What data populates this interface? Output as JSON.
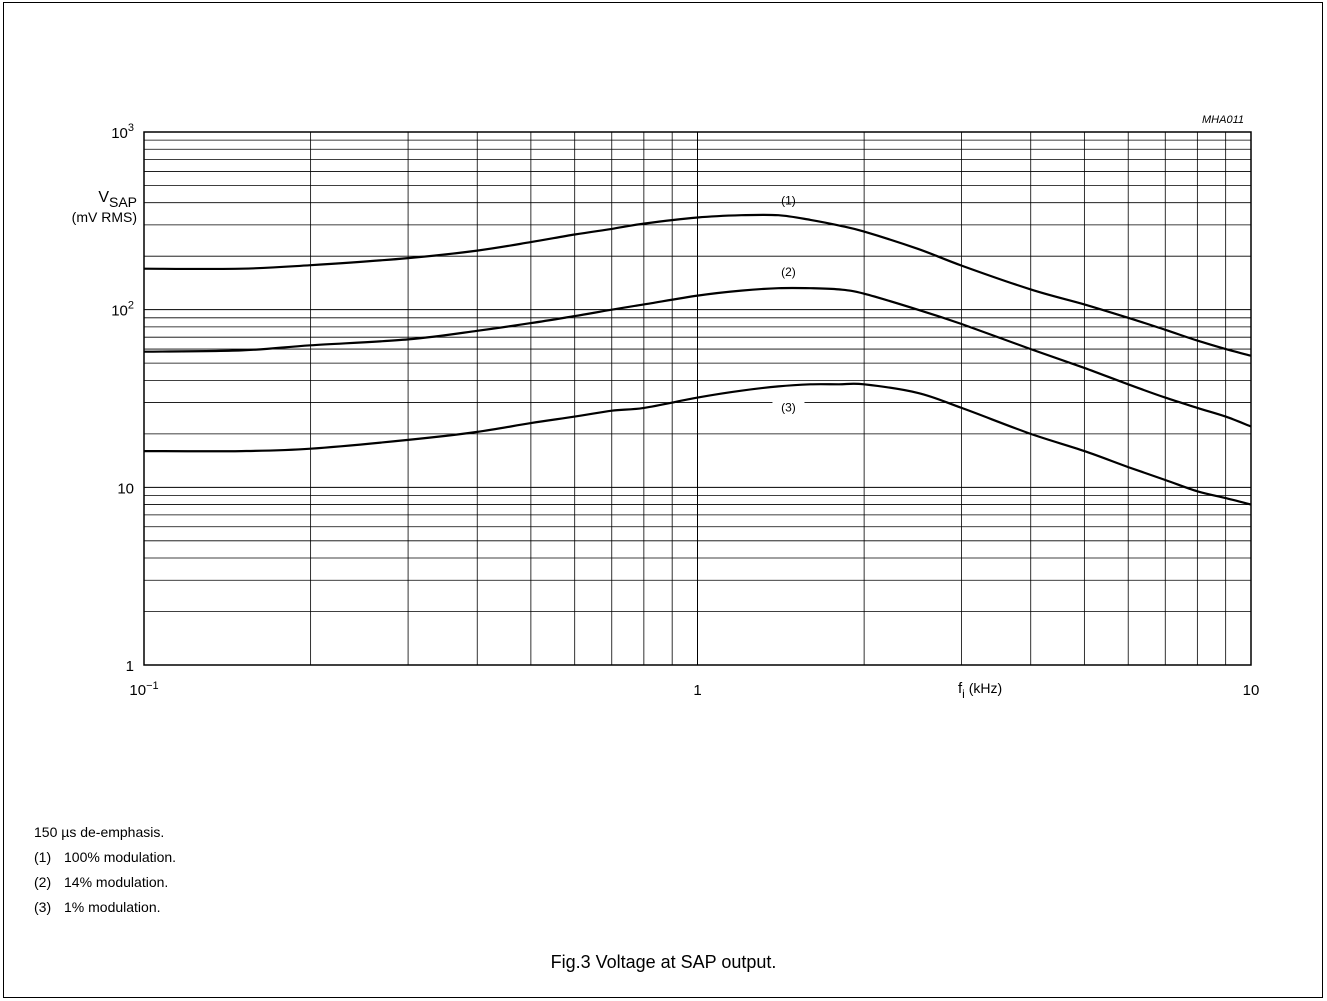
{
  "figure_id": "MHA011",
  "caption": "Fig.3  Voltage at SAP output.",
  "notes": {
    "intro": "150 µs de-emphasis.",
    "items": [
      {
        "marker": "(1)",
        "text": "100% modulation."
      },
      {
        "marker": "(2)",
        "text": "14% modulation."
      },
      {
        "marker": "(3)",
        "text": "1% modulation."
      }
    ]
  },
  "chart_data": {
    "type": "line",
    "title": "",
    "xscale": "log",
    "yscale": "log",
    "xlim": [
      0.1,
      10
    ],
    "ylim": [
      1,
      1000
    ],
    "grid": true,
    "ylabel_main": "V",
    "ylabel_sub": "SAP",
    "ylabel_unit": "(mV RMS)",
    "xlabel_main": "f",
    "xlabel_sub": "i",
    "xlabel_unit": " (kHz)",
    "x_ticks": [
      {
        "value": 0.1,
        "base": "10",
        "exp": "−1"
      },
      {
        "value": 1,
        "base": "1",
        "exp": ""
      },
      {
        "value": 10,
        "base": "10",
        "exp": ""
      }
    ],
    "y_ticks": [
      {
        "value": 1,
        "base": "1",
        "exp": ""
      },
      {
        "value": 10,
        "base": "10",
        "exp": ""
      },
      {
        "value": 100,
        "base": "10",
        "exp": "2"
      },
      {
        "value": 1000,
        "base": "10",
        "exp": "3"
      }
    ],
    "series": [
      {
        "name": "(1)",
        "x": [
          0.1,
          0.15,
          0.2,
          0.3,
          0.4,
          0.5,
          0.6,
          0.7,
          0.8,
          1.0,
          1.2,
          1.4,
          1.6,
          1.8,
          2.0,
          2.5,
          3.0,
          4.0,
          5.0,
          6.0,
          7.0,
          8.0,
          9.0,
          10.0
        ],
        "y": [
          170,
          170,
          178,
          195,
          215,
          240,
          265,
          285,
          305,
          330,
          340,
          340,
          320,
          298,
          275,
          220,
          177,
          130,
          107,
          90,
          77,
          67,
          60,
          55
        ]
      },
      {
        "name": "(2)",
        "x": [
          0.1,
          0.15,
          0.2,
          0.3,
          0.4,
          0.5,
          0.6,
          0.7,
          0.8,
          1.0,
          1.2,
          1.4,
          1.6,
          1.8,
          2.0,
          2.5,
          3.0,
          4.0,
          5.0,
          6.0,
          7.0,
          8.0,
          9.0,
          10.0
        ],
        "y": [
          58,
          59,
          63,
          68,
          76,
          84,
          92,
          100,
          107,
          120,
          128,
          132,
          132,
          130,
          123,
          100,
          83,
          60,
          47,
          38,
          32,
          28,
          25,
          22
        ]
      },
      {
        "name": "(3)",
        "x": [
          0.1,
          0.15,
          0.2,
          0.3,
          0.4,
          0.5,
          0.6,
          0.7,
          0.8,
          1.0,
          1.2,
          1.4,
          1.6,
          1.8,
          2.0,
          2.5,
          3.0,
          4.0,
          5.0,
          6.0,
          7.0,
          8.0,
          9.0,
          10.0
        ],
        "y": [
          16,
          16,
          16.5,
          18.5,
          20.5,
          23,
          25,
          27,
          28,
          32,
          35,
          37,
          38,
          38,
          38,
          34,
          28,
          20,
          16,
          13,
          11,
          9.5,
          8.7,
          8
        ]
      }
    ]
  }
}
